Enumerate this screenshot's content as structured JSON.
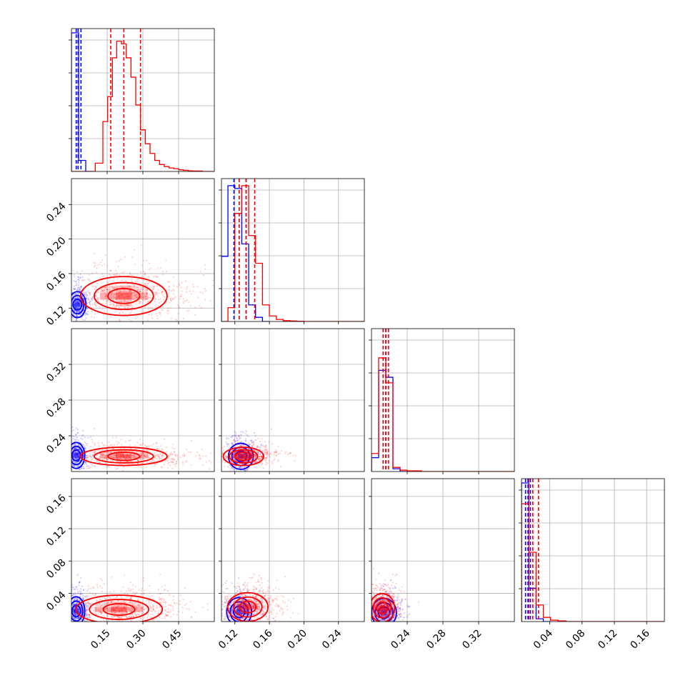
{
  "colors": {
    "series_a": "#0000ff",
    "series_b": "#ff0000",
    "grid": "#b0b0b0",
    "frame": "#000000"
  },
  "chart_data": {
    "type": "corner",
    "parameters": [
      {
        "range": [
          0.0,
          0.6
        ],
        "ticks": [
          0.15,
          0.3,
          0.45
        ],
        "tick_labels": [
          "0.15",
          "0.30",
          "0.45"
        ]
      },
      {
        "range": [
          0.1045,
          0.27
        ],
        "ticks": [
          0.12,
          0.16,
          0.2,
          0.24
        ],
        "tick_labels": [
          "0.12",
          "0.16",
          "0.20",
          "0.24"
        ]
      },
      {
        "range": [
          0.2,
          0.36
        ],
        "ticks": [
          0.24,
          0.28,
          0.32
        ],
        "tick_labels": [
          "0.24",
          "0.28",
          "0.32"
        ]
      },
      {
        "range": [
          0.005,
          0.182
        ],
        "ticks": [
          0.04,
          0.08,
          0.12,
          0.16
        ],
        "tick_labels": [
          "0.04",
          "0.08",
          "0.12",
          "0.16"
        ]
      }
    ],
    "series": [
      {
        "color": "#0000ff",
        "histograms": [
          {
            "edges": [
              0.0,
              0.03,
              0.06,
              0.09
            ],
            "counts": [
              1.0,
              0.08,
              0.0
            ]
          },
          {
            "edges": [
              0.1045,
              0.112,
              0.12,
              0.128,
              0.136,
              0.144,
              0.152,
              0.16
            ],
            "counts": [
              0.47,
              0.98,
              0.96,
              0.56,
              0.12,
              0.03,
              0.0
            ]
          },
          {
            "edges": [
              0.2,
              0.208,
              0.216,
              0.224,
              0.232,
              0.24
            ],
            "counts": [
              0.1,
              0.73,
              0.68,
              0.02,
              0.0
            ]
          },
          {
            "edges": [
              0.005,
              0.014,
              0.023,
              0.032,
              0.041
            ],
            "counts": [
              1.0,
              0.24,
              0.02,
              0.0
            ]
          }
        ],
        "quantiles": [
          [
            0.02,
            0.028,
            0.04
          ],
          [
            0.119,
            0.125,
            0.133
          ],
          [
            0.213,
            0.216,
            0.219
          ],
          [
            0.01,
            0.013,
            0.016
          ]
        ],
        "pair_centers": {
          "0-1": [
            0.025,
            0.124
          ],
          "0-2": [
            0.02,
            0.218
          ],
          "0-3": [
            0.02,
            0.018
          ],
          "1-2": [
            0.127,
            0.217
          ],
          "1-3": [
            0.125,
            0.017
          ],
          "2-3": [
            0.214,
            0.016
          ]
        }
      },
      {
        "color": "#ff0000",
        "histograms": [
          {
            "edges": [
              0.0,
              0.036,
              0.06,
              0.1,
              0.132,
              0.152,
              0.172,
              0.19,
              0.21,
              0.23,
              0.25,
              0.27,
              0.29,
              0.31,
              0.33,
              0.35,
              0.37,
              0.39,
              0.41,
              0.43,
              0.45,
              0.47,
              0.49,
              0.51,
              0.55,
              0.6
            ],
            "counts": [
              0.0,
              0.0,
              0.0,
              0.06,
              0.36,
              0.54,
              0.82,
              0.94,
              0.92,
              0.82,
              0.68,
              0.48,
              0.3,
              0.2,
              0.13,
              0.08,
              0.05,
              0.035,
              0.025,
              0.02,
              0.012,
              0.008,
              0.005,
              0.003,
              0.0
            ]
          },
          {
            "edges": [
              0.1045,
              0.112,
              0.12,
              0.128,
              0.136,
              0.144,
              0.152,
              0.16,
              0.168,
              0.176,
              0.184,
              0.192,
              0.2,
              0.27
            ],
            "counts": [
              0.0,
              0.1,
              0.78,
              0.98,
              0.62,
              0.42,
              0.12,
              0.04,
              0.015,
              0.006,
              0.004,
              0.002,
              0.0
            ]
          },
          {
            "edges": [
              0.2,
              0.208,
              0.216,
              0.224,
              0.232,
              0.24,
              0.256,
              0.36
            ],
            "counts": [
              0.13,
              0.82,
              0.64,
              0.03,
              0.01,
              0.005,
              0.0
            ]
          },
          {
            "edges": [
              0.005,
              0.014,
              0.023,
              0.032,
              0.041,
              0.05,
              0.06,
              0.182
            ],
            "counts": [
              0.85,
              0.5,
              0.12,
              0.03,
              0.01,
              0.005,
              0.0
            ]
          }
        ],
        "quantiles": [
          [
            0.165,
            0.22,
            0.29
          ],
          [
            0.125,
            0.133,
            0.143
          ],
          [
            0.213,
            0.216,
            0.219
          ],
          [
            0.014,
            0.019,
            0.026
          ]
        ],
        "pair_centers": {
          "0-1": [
            0.22,
            0.134
          ],
          "0-2": [
            0.22,
            0.217
          ],
          "0-3": [
            0.2,
            0.02
          ],
          "1-2": [
            0.13,
            0.217
          ],
          "1-3": [
            0.135,
            0.023
          ],
          "2-3": [
            0.212,
            0.022
          ]
        }
      }
    ],
    "grid": true,
    "levels": 3
  }
}
